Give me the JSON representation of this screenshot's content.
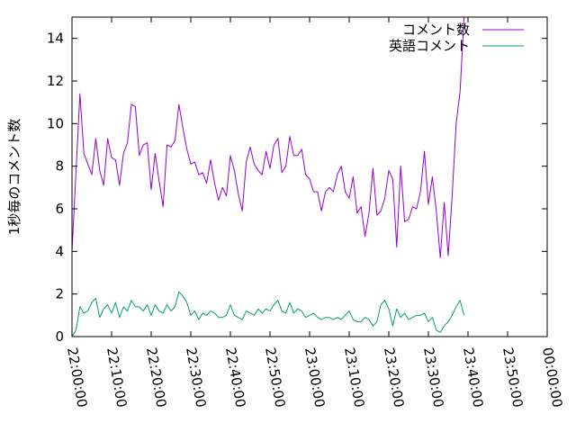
{
  "chart_data": {
    "type": "line",
    "title": "",
    "xlabel": "",
    "ylabel": "1秒毎のコメント数",
    "ylim": [
      0,
      15
    ],
    "xlim": [
      "22:00:00",
      "00:00:00"
    ],
    "grid": false,
    "legend_position": "top-right",
    "x_ticks": [
      "22:00:00",
      "22:10:00",
      "22:20:00",
      "22:30:00",
      "22:40:00",
      "22:50:00",
      "23:00:00",
      "23:10:00",
      "23:20:00",
      "23:30:00",
      "23:40:00",
      "23:50:00",
      "00:00:00"
    ],
    "y_ticks": [
      0,
      2,
      4,
      6,
      8,
      10,
      12,
      14
    ],
    "sample_interval_minutes": 1,
    "series": [
      {
        "name": "コメント数",
        "color": "#9400d3",
        "values": [
          4.0,
          7.7,
          11.4,
          8.6,
          8.1,
          7.6,
          9.3,
          7.8,
          7.1,
          9.3,
          8.4,
          8.3,
          7.1,
          8.6,
          9.1,
          10.9,
          10.8,
          8.5,
          9.0,
          9.1,
          6.9,
          8.6,
          7.3,
          6.1,
          9.0,
          8.9,
          9.2,
          10.9,
          9.8,
          8.8,
          8.1,
          8.2,
          7.6,
          7.7,
          7.2,
          8.3,
          7.2,
          6.4,
          7.0,
          6.6,
          8.5,
          7.8,
          6.7,
          5.9,
          8.2,
          8.9,
          8.1,
          7.8,
          7.6,
          8.7,
          7.9,
          9.0,
          9.3,
          7.7,
          8.0,
          9.4,
          8.5,
          8.5,
          8.8,
          7.6,
          7.4,
          6.8,
          6.8,
          5.9,
          6.8,
          7.0,
          6.8,
          7.6,
          8.0,
          6.8,
          6.5,
          7.5,
          5.8,
          6.1,
          4.7,
          5.8,
          7.9,
          5.7,
          5.9,
          6.5,
          7.8,
          7.4,
          4.2,
          8.0,
          5.4,
          5.5,
          6.1,
          6.0,
          6.8,
          8.7,
          6.2,
          7.5,
          5.9,
          3.7,
          6.3,
          3.8,
          6.6,
          10.0,
          11.5,
          15.0
        ]
      },
      {
        "name": "英語コメント",
        "color": "#009e73",
        "values": [
          0.0,
          0.3,
          1.4,
          1.1,
          1.2,
          1.6,
          1.8,
          0.9,
          1.3,
          1.5,
          1.1,
          1.6,
          0.9,
          1.4,
          1.2,
          1.7,
          1.4,
          1.4,
          1.2,
          1.5,
          1.0,
          1.5,
          1.2,
          1.1,
          1.5,
          1.2,
          1.4,
          2.1,
          1.9,
          1.6,
          1.0,
          1.2,
          0.8,
          1.1,
          1.0,
          1.2,
          1.1,
          0.9,
          0.9,
          1.0,
          1.5,
          1.0,
          0.9,
          0.8,
          1.2,
          1.1,
          1.0,
          1.3,
          1.1,
          1.3,
          1.2,
          1.5,
          1.7,
          1.2,
          1.1,
          1.6,
          1.1,
          1.3,
          1.2,
          0.9,
          1.0,
          1.1,
          0.9,
          0.8,
          0.9,
          0.9,
          0.8,
          0.9,
          0.8,
          1.0,
          1.2,
          0.8,
          0.7,
          0.7,
          0.9,
          0.8,
          0.5,
          0.7,
          1.5,
          1.7,
          1.3,
          0.5,
          1.3,
          0.9,
          1.1,
          0.8,
          0.9,
          1.0,
          1.0,
          1.1,
          0.7,
          0.9,
          0.3,
          0.2,
          0.5,
          0.7,
          1.0,
          1.4,
          1.7,
          1.0
        ]
      }
    ]
  }
}
